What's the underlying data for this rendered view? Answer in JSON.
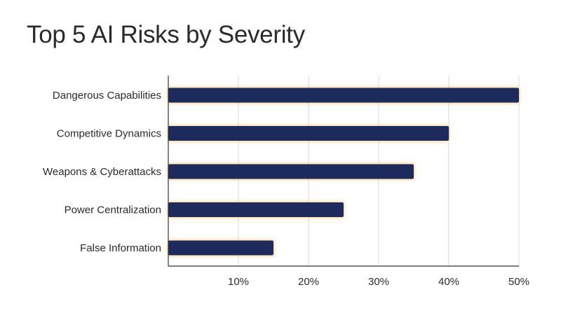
{
  "chart_data": {
    "type": "bar",
    "orientation": "horizontal",
    "title": "Top 5 AI Risks by Severity",
    "xlabel": "",
    "ylabel": "",
    "categories": [
      "Dangerous Capabilities",
      "Competitive Dynamics",
      "Weapons & Cyberattacks",
      "Power Centralization",
      "False Information"
    ],
    "values": [
      50,
      40,
      35,
      25,
      15
    ],
    "xlim": [
      0,
      50
    ],
    "x_ticks": [
      10,
      20,
      30,
      40,
      50
    ],
    "x_tick_labels": [
      "10%",
      "20%",
      "30%",
      "40%",
      "50%"
    ],
    "grid": "vertical",
    "legend": "none",
    "colors": {
      "bar": "#1c2a5c",
      "bar_glow": "#f5a623",
      "grid": "#d9d9d9",
      "axis": "#333333",
      "text": "#2a2a2a"
    }
  }
}
